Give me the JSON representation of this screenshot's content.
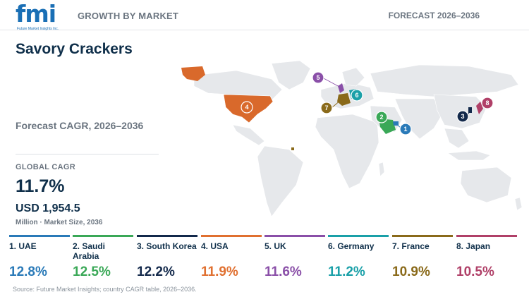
{
  "header": {
    "logo_text": "fmi",
    "logo_sub": "Future Market Insights Inc.",
    "left_label": "GROWTH BY MARKET",
    "right_label": "FORECAST 2026–2036"
  },
  "title": "Savory Crackers",
  "subtitle": "Forecast CAGR, 2026–2036",
  "global": {
    "label": "GLOBAL CAGR",
    "value": "11.7%",
    "size": "USD 1,954.5",
    "size_unit": "Million · Market Size, 2036"
  },
  "countries": [
    {
      "rank": "1",
      "name": "1. UAE",
      "cagr": "12.8%",
      "color": "#2a7ab8"
    },
    {
      "rank": "2",
      "name": "2. Saudi Arabia",
      "cagr": "12.5%",
      "color": "#3aa857"
    },
    {
      "rank": "3",
      "name": "3. South Korea",
      "cagr": "12.2%",
      "color": "#13294b"
    },
    {
      "rank": "4",
      "name": "4. USA",
      "cagr": "11.9%",
      "color": "#e07030"
    },
    {
      "rank": "5",
      "name": "5. UK",
      "cagr": "11.6%",
      "color": "#8a4fa8"
    },
    {
      "rank": "6",
      "name": "6. Germany",
      "cagr": "11.2%",
      "color": "#1aa0a8"
    },
    {
      "rank": "7",
      "name": "7. France",
      "cagr": "10.9%",
      "color": "#8a6a1a"
    },
    {
      "rank": "8",
      "name": "8. Japan",
      "cagr": "10.5%",
      "color": "#b04068"
    }
  ],
  "source": "Source: Future Market Insights; country CAGR table, 2026–2036."
}
